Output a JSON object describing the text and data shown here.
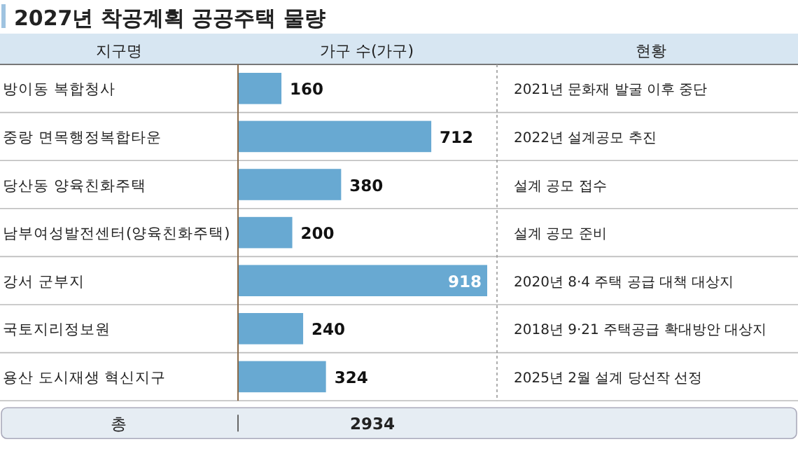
{
  "chart_data": {
    "type": "bar",
    "orientation": "horizontal",
    "title": "2027년 착공계획 공공주택 물량",
    "ylabel": "지구명",
    "xlabel": "가구 수(가구)",
    "categories": [
      "방이동 복합청사",
      "중랑 면목행정복합타운",
      "당산동 양육친화주택",
      "남부여성발전센터(양육친화주택)",
      "강서 군부지",
      "국토지리정보원",
      "용산 도시재생 혁신지구"
    ],
    "values": [
      160,
      712,
      380,
      200,
      918,
      240,
      324
    ],
    "color": "#68a9d2",
    "data_labels": true,
    "annotations": [
      "현황",
      "2021년 문화재 발굴 이후 중단",
      "2022년 설계공모 추진",
      "설계 공모 접수",
      "설계 공모 준비",
      "2020년 8·4 주택 공급 대책 대상지",
      "2018년 9·21 주택공급 확대방안 대상지",
      "2025년 2월 설계 당선작 선정",
      "총",
      "2934"
    ]
  }
}
